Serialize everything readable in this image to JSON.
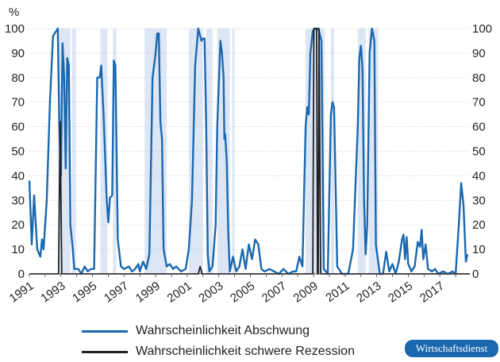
{
  "chart_data": {
    "type": "line",
    "ylabel": "%",
    "ylim": [
      0,
      100
    ],
    "yticks": [
      0,
      10,
      20,
      30,
      40,
      50,
      60,
      70,
      80,
      90,
      100
    ],
    "xlim": [
      1991.0,
      2018.9
    ],
    "xtick_labels": [
      "1991",
      "1993",
      "1995",
      "1997",
      "1999",
      "2001",
      "2003",
      "2005",
      "2007",
      "2009",
      "2011",
      "2013",
      "2015",
      "2017"
    ],
    "recession_periods": [
      [
        1992.8,
        1993.6
      ],
      [
        1993.7,
        1993.95
      ],
      [
        1995.5,
        1995.95
      ],
      [
        1996.3,
        1996.5
      ],
      [
        1998.3,
        1999.7
      ],
      [
        2001.1,
        2002.0
      ],
      [
        2002.2,
        2002.6
      ],
      [
        2002.9,
        2003.7
      ],
      [
        2003.85,
        2004.0
      ],
      [
        2008.5,
        2009.7
      ],
      [
        2010.1,
        2010.3
      ],
      [
        2011.8,
        2012.3
      ],
      [
        2012.5,
        2013.1
      ]
    ],
    "series": [
      {
        "name": "Wahrscheinlichkeit Abschwung",
        "color": "#1a68b0",
        "points": [
          [
            1991.0,
            38
          ],
          [
            1991.15,
            12
          ],
          [
            1991.3,
            32
          ],
          [
            1991.5,
            10
          ],
          [
            1991.7,
            7
          ],
          [
            1991.8,
            14
          ],
          [
            1991.9,
            10
          ],
          [
            1992.1,
            30
          ],
          [
            1992.3,
            70
          ],
          [
            1992.5,
            97
          ],
          [
            1992.8,
            100
          ],
          [
            1992.9,
            60
          ],
          [
            1993.0,
            40
          ],
          [
            1993.1,
            94
          ],
          [
            1993.2,
            80
          ],
          [
            1993.3,
            43
          ],
          [
            1993.4,
            88
          ],
          [
            1993.5,
            85
          ],
          [
            1993.6,
            20
          ],
          [
            1993.75,
            10
          ],
          [
            1993.85,
            2
          ],
          [
            1994.1,
            2
          ],
          [
            1994.3,
            0
          ],
          [
            1994.5,
            3
          ],
          [
            1994.7,
            1
          ],
          [
            1994.9,
            2
          ],
          [
            1995.1,
            2
          ],
          [
            1995.3,
            80
          ],
          [
            1995.45,
            80
          ],
          [
            1995.55,
            85
          ],
          [
            1995.7,
            65
          ],
          [
            1995.9,
            30
          ],
          [
            1996.0,
            21
          ],
          [
            1996.1,
            31
          ],
          [
            1996.25,
            32
          ],
          [
            1996.35,
            87
          ],
          [
            1996.45,
            85
          ],
          [
            1996.6,
            14
          ],
          [
            1996.8,
            3
          ],
          [
            1997.0,
            2
          ],
          [
            1997.3,
            3
          ],
          [
            1997.5,
            1
          ],
          [
            1997.7,
            2
          ],
          [
            1997.9,
            4
          ],
          [
            1998.0,
            1
          ],
          [
            1998.2,
            5
          ],
          [
            1998.4,
            2
          ],
          [
            1998.6,
            8
          ],
          [
            1998.8,
            80
          ],
          [
            1999.0,
            90
          ],
          [
            1999.1,
            98
          ],
          [
            1999.2,
            98
          ],
          [
            1999.3,
            62
          ],
          [
            1999.4,
            55
          ],
          [
            1999.5,
            10
          ],
          [
            1999.7,
            3
          ],
          [
            1999.9,
            4
          ],
          [
            2000.1,
            2
          ],
          [
            2000.3,
            3
          ],
          [
            2000.6,
            1
          ],
          [
            2000.9,
            2
          ],
          [
            2001.1,
            10
          ],
          [
            2001.3,
            30
          ],
          [
            2001.5,
            85
          ],
          [
            2001.7,
            100
          ],
          [
            2001.9,
            95
          ],
          [
            2002.0,
            96
          ],
          [
            2002.1,
            96
          ],
          [
            2002.2,
            60
          ],
          [
            2002.3,
            8
          ],
          [
            2002.4,
            1
          ],
          [
            2002.6,
            3
          ],
          [
            2002.8,
            20
          ],
          [
            2002.9,
            60
          ],
          [
            2003.1,
            95
          ],
          [
            2003.2,
            90
          ],
          [
            2003.3,
            80
          ],
          [
            2003.35,
            55
          ],
          [
            2003.4,
            57
          ],
          [
            2003.5,
            46
          ],
          [
            2003.6,
            17
          ],
          [
            2003.7,
            1
          ],
          [
            2003.9,
            7
          ],
          [
            2004.1,
            1
          ],
          [
            2004.3,
            3
          ],
          [
            2004.5,
            10
          ],
          [
            2004.7,
            2
          ],
          [
            2004.9,
            12
          ],
          [
            2005.1,
            6
          ],
          [
            2005.3,
            14
          ],
          [
            2005.5,
            12
          ],
          [
            2005.7,
            2
          ],
          [
            2005.9,
            1
          ],
          [
            2006.2,
            2
          ],
          [
            2006.5,
            1
          ],
          [
            2006.8,
            0
          ],
          [
            2007.1,
            2
          ],
          [
            2007.4,
            0
          ],
          [
            2007.7,
            1
          ],
          [
            2007.9,
            1
          ],
          [
            2008.1,
            7
          ],
          [
            2008.3,
            3
          ],
          [
            2008.5,
            60
          ],
          [
            2008.6,
            68
          ],
          [
            2008.7,
            65
          ],
          [
            2008.8,
            90
          ],
          [
            2008.95,
            99
          ],
          [
            2009.1,
            100
          ],
          [
            2009.3,
            100
          ],
          [
            2009.5,
            95
          ],
          [
            2009.65,
            2
          ],
          [
            2009.9,
            0
          ],
          [
            2010.1,
            65
          ],
          [
            2010.2,
            70
          ],
          [
            2010.3,
            68
          ],
          [
            2010.5,
            3
          ],
          [
            2010.8,
            0
          ],
          [
            2011.2,
            0
          ],
          [
            2011.5,
            10
          ],
          [
            2011.8,
            60
          ],
          [
            2011.9,
            88
          ],
          [
            2012.0,
            93
          ],
          [
            2012.1,
            84
          ],
          [
            2012.2,
            30
          ],
          [
            2012.3,
            8
          ],
          [
            2012.4,
            20
          ],
          [
            2012.55,
            90
          ],
          [
            2012.7,
            100
          ],
          [
            2012.85,
            95
          ],
          [
            2012.95,
            12
          ],
          [
            2013.2,
            0
          ],
          [
            2013.4,
            0
          ],
          [
            2013.6,
            9
          ],
          [
            2013.8,
            1
          ],
          [
            2014.0,
            4
          ],
          [
            2014.2,
            0
          ],
          [
            2014.4,
            5
          ],
          [
            2014.6,
            14
          ],
          [
            2014.7,
            16
          ],
          [
            2014.8,
            6
          ],
          [
            2014.9,
            15
          ],
          [
            2015.0,
            4
          ],
          [
            2015.2,
            1
          ],
          [
            2015.4,
            3
          ],
          [
            2015.6,
            13
          ],
          [
            2015.75,
            11
          ],
          [
            2015.85,
            18
          ],
          [
            2015.95,
            6
          ],
          [
            2016.1,
            12
          ],
          [
            2016.25,
            2
          ],
          [
            2016.5,
            1
          ],
          [
            2016.7,
            2
          ],
          [
            2016.9,
            0
          ],
          [
            2017.2,
            1
          ],
          [
            2017.5,
            0
          ],
          [
            2017.8,
            1
          ],
          [
            2018.0,
            0
          ],
          [
            2018.2,
            20
          ],
          [
            2018.35,
            37
          ],
          [
            2018.5,
            28
          ],
          [
            2018.65,
            5
          ],
          [
            2018.75,
            8
          ]
        ]
      },
      {
        "name": "Wahrscheinlichkeit schwere Rezession",
        "color": "#222222",
        "points": [
          [
            1991.0,
            0
          ],
          [
            1992.85,
            0
          ],
          [
            1992.95,
            62
          ],
          [
            1993.05,
            0
          ],
          [
            2001.7,
            0
          ],
          [
            2001.82,
            3
          ],
          [
            2001.94,
            0
          ],
          [
            2008.95,
            0
          ],
          [
            2009.02,
            100
          ],
          [
            2009.1,
            100
          ],
          [
            2009.2,
            100
          ],
          [
            2009.25,
            0
          ],
          [
            2009.3,
            0
          ],
          [
            2009.35,
            100
          ],
          [
            2009.45,
            0
          ],
          [
            2018.9,
            0
          ]
        ]
      }
    ],
    "legend": [
      {
        "label": "Wahrscheinlichkeit Abschwung",
        "color": "#1a68b0"
      },
      {
        "label": "Wahrscheinlichkeit schwere Rezession",
        "color": "#222222"
      }
    ]
  },
  "branding": {
    "label": "Wirtschaftsdienst"
  }
}
